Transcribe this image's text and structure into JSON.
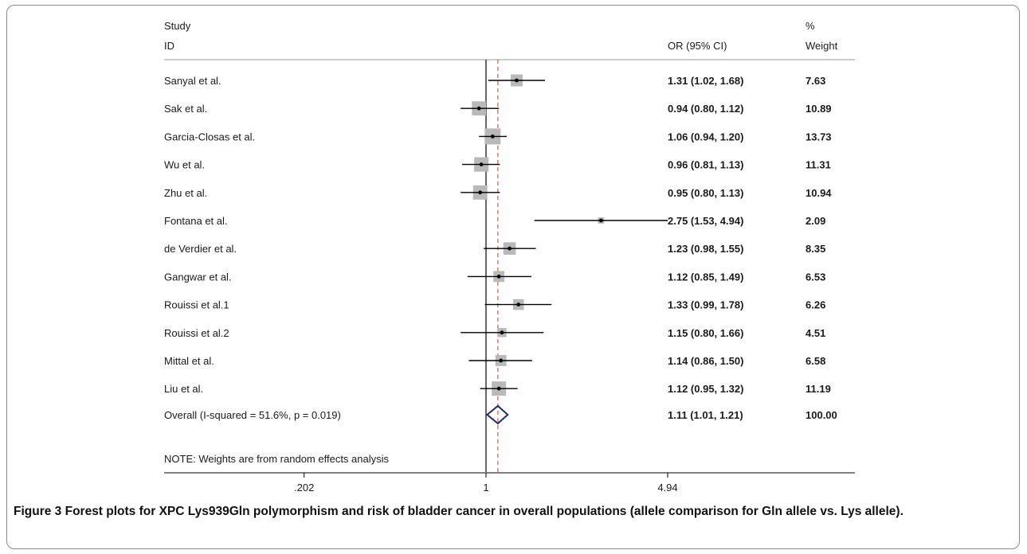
{
  "chart_data": {
    "type": "forest",
    "header": {
      "study_line1": "Study",
      "study_line2": "ID",
      "or_label": "OR (95% CI)",
      "weight_line1": "%",
      "weight_line2": "Weight"
    },
    "studies": [
      {
        "name": "Sanyal et al.",
        "or": 1.31,
        "lo": 1.02,
        "hi": 1.68,
        "or_text": "1.31 (1.02, 1.68)",
        "weight": "7.63"
      },
      {
        "name": "Sak et al.",
        "or": 0.94,
        "lo": 0.8,
        "hi": 1.12,
        "or_text": "0.94 (0.80, 1.12)",
        "weight": "10.89"
      },
      {
        "name": "Garcia-Closas et al.",
        "or": 1.06,
        "lo": 0.94,
        "hi": 1.2,
        "or_text": "1.06 (0.94, 1.20)",
        "weight": "13.73"
      },
      {
        "name": "Wu et al.",
        "or": 0.96,
        "lo": 0.81,
        "hi": 1.13,
        "or_text": "0.96 (0.81, 1.13)",
        "weight": "11.31"
      },
      {
        "name": "Zhu et al.",
        "or": 0.95,
        "lo": 0.8,
        "hi": 1.13,
        "or_text": "0.95 (0.80, 1.13)",
        "weight": "10.94"
      },
      {
        "name": "Fontana et al.",
        "or": 2.75,
        "lo": 1.53,
        "hi": 4.94,
        "or_text": "2.75 (1.53, 4.94)",
        "weight": "2.09"
      },
      {
        "name": "de Verdier et al.",
        "or": 1.23,
        "lo": 0.98,
        "hi": 1.55,
        "or_text": "1.23 (0.98, 1.55)",
        "weight": "8.35"
      },
      {
        "name": "Gangwar et al.",
        "or": 1.12,
        "lo": 0.85,
        "hi": 1.49,
        "or_text": "1.12 (0.85, 1.49)",
        "weight": "6.53"
      },
      {
        "name": "Rouissi et al.1",
        "or": 1.33,
        "lo": 0.99,
        "hi": 1.78,
        "or_text": "1.33 (0.99, 1.78)",
        "weight": "6.26"
      },
      {
        "name": "Rouissi et al.2",
        "or": 1.15,
        "lo": 0.8,
        "hi": 1.66,
        "or_text": "1.15 (0.80, 1.66)",
        "weight": "4.51"
      },
      {
        "name": "Mittal et al.",
        "or": 1.14,
        "lo": 0.86,
        "hi": 1.5,
        "or_text": "1.14 (0.86, 1.50)",
        "weight": "6.58"
      },
      {
        "name": "Liu et al.",
        "or": 1.12,
        "lo": 0.95,
        "hi": 1.32,
        "or_text": "1.12 (0.95, 1.32)",
        "weight": "11.19"
      }
    ],
    "overall": {
      "label": "Overall  (I-squared = 51.6%, p = 0.019)",
      "or": 1.11,
      "lo": 1.01,
      "hi": 1.21,
      "or_text": "1.11 (1.01, 1.21)",
      "weight": "100.00"
    },
    "note": "NOTE: Weights are from random effects analysis",
    "x_scale": "log",
    "x_ticks": [
      {
        "value": 0.202,
        "label": ".202"
      },
      {
        "value": 1,
        "label": "1"
      },
      {
        "value": 4.94,
        "label": "4.94"
      }
    ],
    "reference_line": 1,
    "colors": {
      "square": "#b9b9b9",
      "diamond": "#1f2a6e",
      "overall_line": "#c0392b",
      "lines": "#000000"
    }
  },
  "caption": {
    "figure_label": "Figure 3",
    "text": " Forest plots for XPC Lys939Gln polymorphism and risk of bladder cancer in overall populations (allele comparison for Gln allele vs. Lys allele)."
  }
}
